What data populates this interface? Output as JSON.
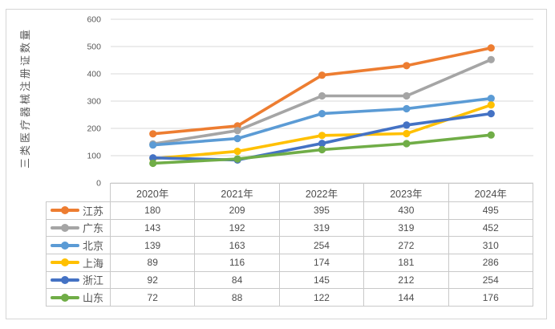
{
  "chart_data": {
    "type": "line",
    "title": "",
    "ylabel": "三类医疗器械注册证数量",
    "xlabel": "",
    "categories": [
      "2020年",
      "2021年",
      "2022年",
      "2023年",
      "2024年"
    ],
    "series": [
      {
        "name": "江苏",
        "color": "#ED7D31",
        "values": [
          180,
          209,
          395,
          430,
          495
        ]
      },
      {
        "name": "广东",
        "color": "#A5A5A5",
        "values": [
          143,
          192,
          319,
          319,
          452
        ]
      },
      {
        "name": "北京",
        "color": "#5B9BD5",
        "values": [
          139,
          163,
          254,
          272,
          310
        ]
      },
      {
        "name": "上海",
        "color": "#FFC000",
        "values": [
          89,
          116,
          174,
          181,
          286
        ]
      },
      {
        "name": "浙江",
        "color": "#4472C4",
        "values": [
          92,
          84,
          145,
          212,
          254
        ]
      },
      {
        "name": "山东",
        "color": "#70AD47",
        "values": [
          72,
          88,
          122,
          144,
          176
        ]
      }
    ],
    "ylim": [
      0,
      600
    ],
    "ytick_interval": 100,
    "y_tick_labels": [
      "0",
      "100",
      "200",
      "300",
      "400",
      "500",
      "600"
    ],
    "grid": true,
    "marker": "circle",
    "legend_position": "data-table-left",
    "gridline_color": "#d9d9d9",
    "table_border_color": "#c9c9c9",
    "text_color": "#595959"
  }
}
